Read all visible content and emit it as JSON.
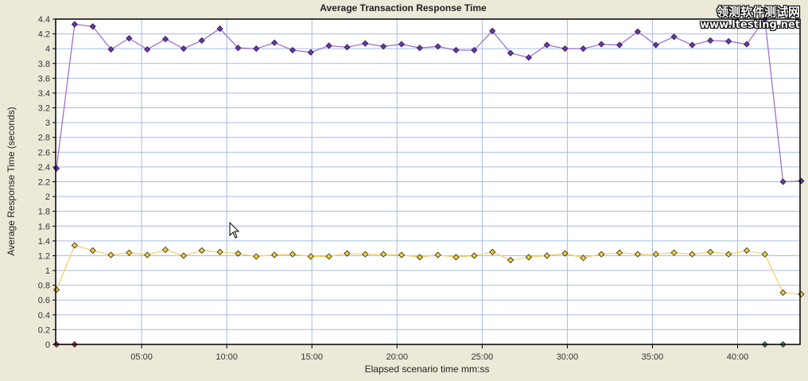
{
  "watermark": {
    "line1": "领测软件测试网",
    "line2": "www.ltesting.net"
  },
  "chart_data": {
    "type": "line",
    "title": "Average Transaction Response Time",
    "xlabel": "Elapsed scenario time mm:ss",
    "ylabel": "Average Response Time (seconds)",
    "xlim_seconds": [
      0,
      2620
    ],
    "ylim": [
      0,
      4.4
    ],
    "yticks": [
      "0",
      "0.2",
      "0.4",
      "0.6",
      "0.8",
      "1",
      "1.2",
      "1.4",
      "1.6",
      "1.8",
      "2",
      "2.2",
      "2.4",
      "2.6",
      "2.8",
      "3",
      "3.2",
      "3.4",
      "3.6",
      "3.8",
      "4",
      "4.2",
      "4.4"
    ],
    "xticks": [
      {
        "label": "05:00",
        "s": 300
      },
      {
        "label": "10:00",
        "s": 600
      },
      {
        "label": "15:00",
        "s": 900
      },
      {
        "label": "20:00",
        "s": 1200
      },
      {
        "label": "25:00",
        "s": 1500
      },
      {
        "label": "30:00",
        "s": 1800
      },
      {
        "label": "35:00",
        "s": 2100
      },
      {
        "label": "40:00",
        "s": 2400
      }
    ],
    "grid": true,
    "sample_interval_seconds": 64,
    "series": [
      {
        "name": "series-purple",
        "color": "#9966cc",
        "marker": "#7030c0",
        "start_index": 0,
        "values": [
          2.38,
          4.33,
          4.3,
          3.99,
          4.14,
          3.99,
          4.13,
          4.0,
          4.11,
          4.27,
          4.01,
          4.0,
          4.08,
          3.98,
          3.95,
          4.04,
          4.02,
          4.07,
          4.03,
          4.06,
          4.01,
          4.03,
          3.98,
          3.98,
          4.24,
          3.94,
          3.88,
          4.05,
          4.0,
          4.0,
          4.06,
          4.05,
          4.23,
          4.05,
          4.16,
          4.05,
          4.11,
          4.1,
          4.06,
          4.4,
          2.2,
          2.21
        ]
      },
      {
        "name": "series-yellow",
        "color": "#f0d060",
        "marker": "#f8d030",
        "start_index": 0,
        "values": [
          0.74,
          1.34,
          1.27,
          1.21,
          1.24,
          1.21,
          1.28,
          1.2,
          1.27,
          1.25,
          1.23,
          1.19,
          1.21,
          1.22,
          1.19,
          1.19,
          1.23,
          1.22,
          1.22,
          1.21,
          1.18,
          1.21,
          1.18,
          1.2,
          1.25,
          1.14,
          1.18,
          1.2,
          1.23,
          1.17,
          1.22,
          1.24,
          1.22,
          1.22,
          1.24,
          1.22,
          1.25,
          1.22,
          1.27,
          1.22,
          0.7,
          0.68
        ]
      },
      {
        "name": "series-red",
        "color": "#a03050",
        "marker": "#c03060",
        "start_index": 0,
        "values": [
          0,
          0
        ]
      },
      {
        "name": "series-green",
        "color": "#308060",
        "marker": "#40a080",
        "start_index": 39,
        "values": [
          0,
          0
        ]
      }
    ]
  }
}
